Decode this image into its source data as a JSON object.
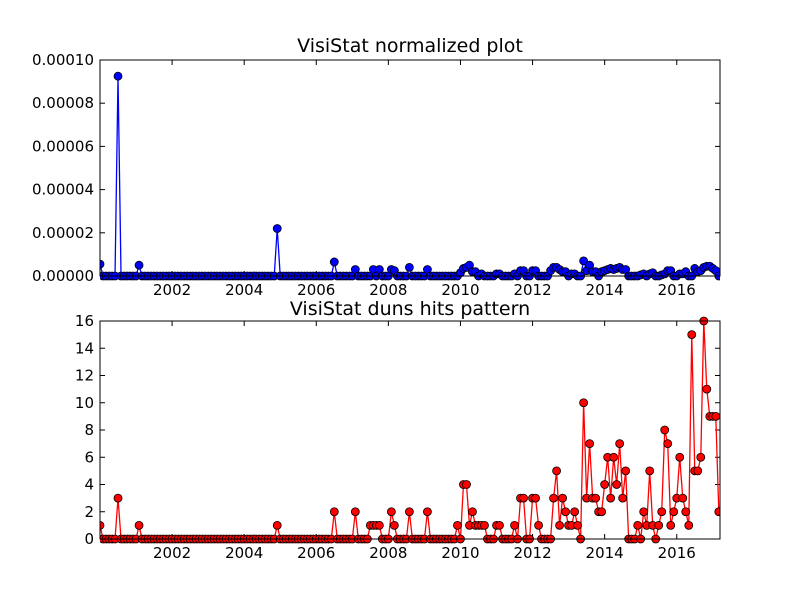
{
  "chart_data": [
    {
      "type": "line",
      "title": "VisiStat normalized plot",
      "xlabel": "",
      "ylabel": "",
      "xlim": [
        2000.0,
        2017.2
      ],
      "ylim": [
        0,
        0.0001
      ],
      "y_ticks": [
        "0.00000",
        "0.00002",
        "0.00004",
        "0.00006",
        "0.00008",
        "0.00010"
      ],
      "x_ticks": [
        "2002",
        "2004",
        "2006",
        "2008",
        "2010",
        "2012",
        "2014",
        "2016"
      ],
      "marker": "circle",
      "color": "#0000ff",
      "grid": false,
      "series": [
        {
          "x": [
            2000.0,
            2000.5,
            2001.08,
            2004.92,
            2006.5,
            2007.08,
            2007.58,
            2007.75,
            2008.08,
            2008.17,
            2008.58,
            2009.08,
            2010.0,
            2010.08,
            2010.17,
            2010.25,
            2010.33,
            2010.42,
            2010.58,
            2011.0,
            2011.08,
            2011.5,
            2011.67,
            2011.75,
            2012.0,
            2012.08,
            2012.5,
            2012.58,
            2012.67,
            2012.75,
            2012.83,
            2012.92,
            2013.08,
            2013.17,
            2013.42,
            2013.5,
            2013.58,
            2013.67,
            2013.75,
            2013.92,
            2014.0,
            2014.08,
            2014.17,
            2014.25,
            2014.33,
            2014.42,
            2014.5,
            2014.58,
            2015.0,
            2015.08,
            2015.25,
            2015.33,
            2015.58,
            2015.67,
            2015.75,
            2015.83,
            2016.08,
            2016.17,
            2016.25,
            2016.5,
            2016.58,
            2016.67,
            2016.75,
            2016.83,
            2016.92,
            2017.0,
            2017.08
          ],
          "values": [
            5.5e-06,
            9.25e-05,
            5e-06,
            2.2e-05,
            6.5e-06,
            3e-06,
            3e-06,
            3e-06,
            3e-06,
            2.5e-06,
            4e-06,
            3e-06,
            1.5e-06,
            3.5e-06,
            4e-06,
            5e-06,
            2e-06,
            2e-06,
            1e-06,
            1e-06,
            1e-06,
            1e-06,
            2.5e-06,
            2.5e-06,
            2.5e-06,
            2.5e-06,
            2.5e-06,
            4e-06,
            4e-06,
            3e-06,
            2e-06,
            2e-06,
            1e-06,
            1e-06,
            7e-06,
            2.5e-06,
            5e-06,
            2e-06,
            2e-06,
            2e-06,
            2.5e-06,
            3e-06,
            3.5e-06,
            3e-06,
            3.5e-06,
            4e-06,
            3e-06,
            3e-06,
            5e-07,
            1e-06,
            1e-06,
            1.5e-06,
            5e-07,
            1e-06,
            2.5e-06,
            2.5e-06,
            1e-06,
            1e-06,
            2e-06,
            3.5e-06,
            2e-06,
            2.5e-06,
            4e-06,
            4.5e-06,
            4.5e-06,
            3.5e-06,
            2.5e-06
          ]
        }
      ]
    },
    {
      "type": "line",
      "title": "VisiStat duns hits pattern",
      "xlabel": "",
      "ylabel": "",
      "xlim": [
        2000.0,
        2017.2
      ],
      "ylim": [
        0,
        16
      ],
      "y_ticks": [
        "0",
        "2",
        "4",
        "6",
        "8",
        "10",
        "12",
        "14",
        "16"
      ],
      "x_ticks": [
        "2002",
        "2004",
        "2006",
        "2008",
        "2010",
        "2012",
        "2014",
        "2016"
      ],
      "marker": "circle",
      "color": "#ff0000",
      "grid": false,
      "series": [
        {
          "x": [
            2000.0,
            2000.5,
            2001.08,
            2004.92,
            2006.5,
            2007.08,
            2007.5,
            2007.58,
            2007.67,
            2007.75,
            2008.08,
            2008.17,
            2008.58,
            2009.08,
            2009.92,
            2010.08,
            2010.17,
            2010.25,
            2010.33,
            2010.42,
            2010.5,
            2010.58,
            2010.67,
            2011.0,
            2011.08,
            2011.5,
            2011.67,
            2011.75,
            2012.0,
            2012.08,
            2012.17,
            2012.58,
            2012.67,
            2012.75,
            2012.83,
            2012.92,
            2013.0,
            2013.08,
            2013.17,
            2013.25,
            2013.42,
            2013.5,
            2013.58,
            2013.67,
            2013.75,
            2013.83,
            2013.92,
            2014.0,
            2014.08,
            2014.17,
            2014.25,
            2014.33,
            2014.42,
            2014.5,
            2014.58,
            2014.67,
            2014.92,
            2015.0,
            2015.08,
            2015.17,
            2015.25,
            2015.33,
            2015.42,
            2015.5,
            2015.58,
            2015.67,
            2015.75,
            2015.83,
            2015.92,
            2016.0,
            2016.08,
            2016.17,
            2016.25,
            2016.33,
            2016.42,
            2016.5,
            2016.58,
            2016.67,
            2016.75,
            2016.83,
            2016.92,
            2017.0,
            2017.08,
            2017.17,
            2017.2
          ],
          "values": [
            1,
            3,
            1,
            1,
            2,
            2,
            1,
            1,
            1,
            1,
            2,
            1,
            2,
            2,
            1,
            4,
            4,
            1,
            2,
            1,
            1,
            1,
            1,
            1,
            1,
            1,
            3,
            3,
            3,
            3,
            1,
            3,
            5,
            1,
            3,
            2,
            1,
            1,
            2,
            1,
            10,
            3,
            7,
            3,
            3,
            2,
            2,
            4,
            6,
            3,
            6,
            4,
            7,
            3,
            5,
            0,
            1,
            0,
            2,
            1,
            5,
            1,
            0,
            1,
            2,
            8,
            7,
            1,
            2,
            3,
            6,
            3,
            2,
            1,
            15,
            5,
            5,
            6,
            16,
            11,
            9,
            9,
            9,
            2,
            2
          ]
        }
      ]
    }
  ]
}
